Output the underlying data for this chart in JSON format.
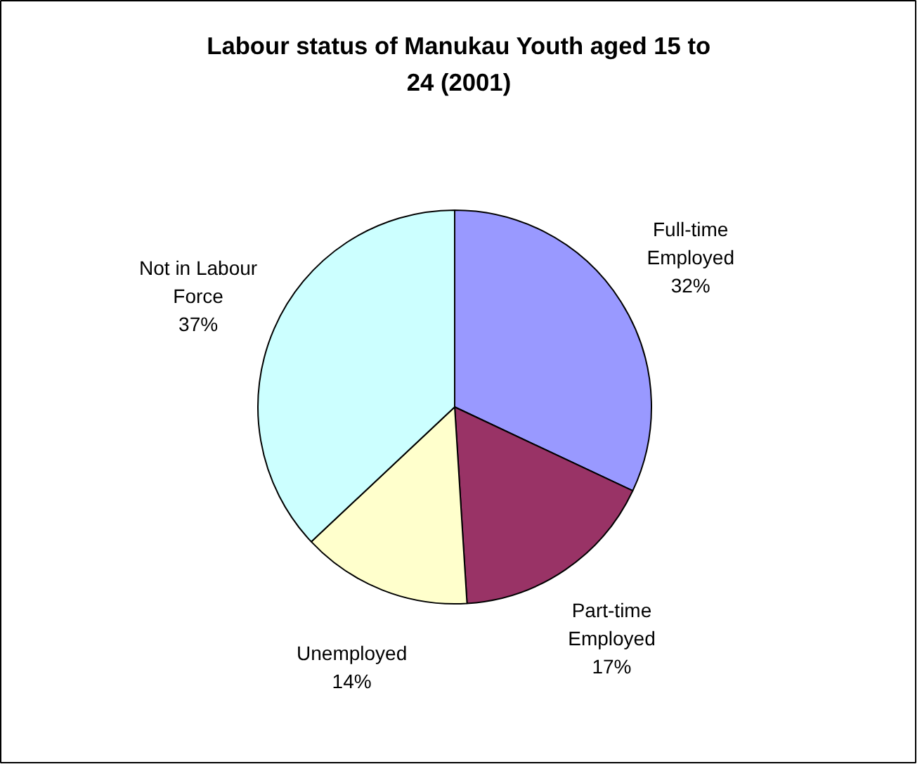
{
  "chart_data": {
    "type": "pie",
    "title": "Labour status of Manukau Youth aged 15 to 24 (2001)",
    "categories": [
      "Full-time Employed",
      "Part-time Employed",
      "Unemployed",
      "Not in Labour Force"
    ],
    "values": [
      32,
      17,
      14,
      37
    ],
    "colors": [
      "#9999ff",
      "#993366",
      "#ffffcc",
      "#ccffff"
    ],
    "value_labels": [
      "32%",
      "17%",
      "14%",
      "37%"
    ]
  }
}
